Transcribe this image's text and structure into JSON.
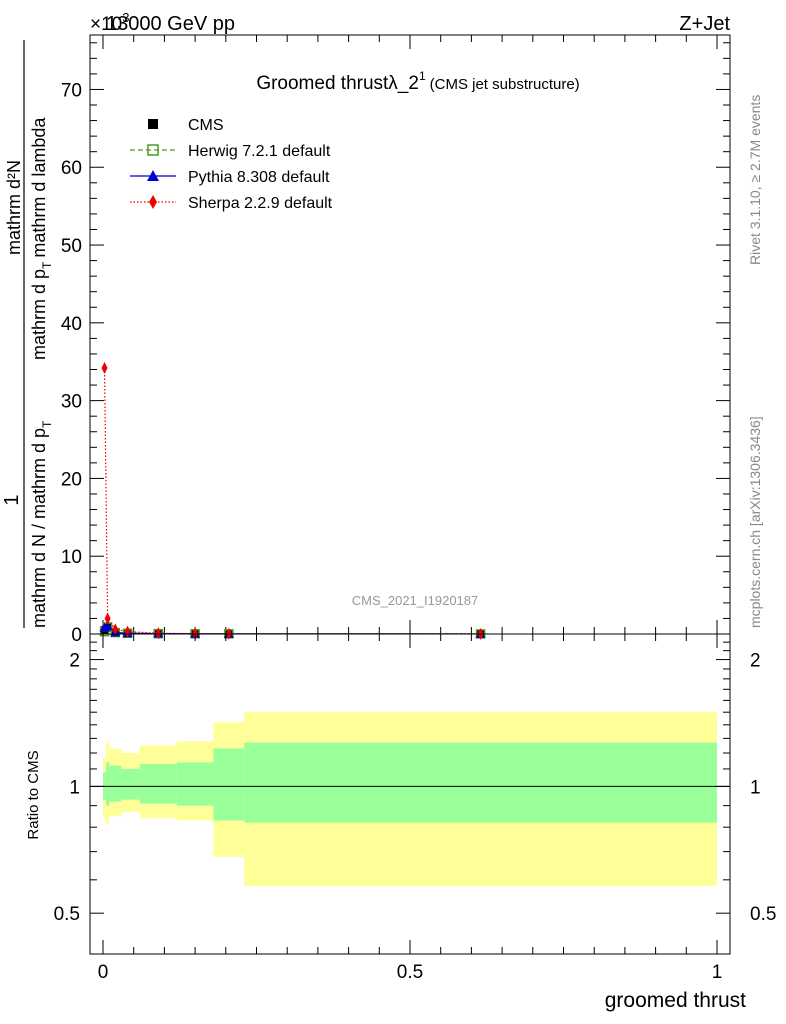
{
  "header": {
    "energy_label": "13000 GeV pp",
    "process_label": "Z+Jet",
    "exponent_label": "×10",
    "exponent_sup": "3"
  },
  "sidebar": {
    "rivet_label": "Rivet 3.1.10, ≥ 2.7M events",
    "mcplots_label": "mcplots.cern.ch [arXiv:1306.3436]"
  },
  "top_panel": {
    "title_main": "Groomed thrustλ_2",
    "title_sup": "1",
    "title_paren": "(CMS jet substructure)",
    "ylabel_num": "mathrm d²N",
    "ylabel_sub_main": "mathrm d p",
    "ylabel_sub_t": "T",
    "ylabel_sub_rest": "mathrm d lambda",
    "ylabel_den_pre": "mathrm d N / mathrm d p",
    "ylabel_den_t": "T",
    "ylabel_one": "1",
    "watermark": "CMS_2021_I1920187"
  },
  "legend": [
    {
      "name": "CMS",
      "color": "#000000",
      "marker": "square-filled",
      "line": "none"
    },
    {
      "name": "Herwig 7.2.1 default",
      "color": "#4d9a1e",
      "marker": "square-open",
      "line": "dashed"
    },
    {
      "name": "Pythia 8.308 default",
      "color": "#0000cc",
      "marker": "triangle",
      "line": "solid"
    },
    {
      "name": "Sherpa 2.2.9 default",
      "color": "#ee0000",
      "marker": "diamond",
      "line": "dotted"
    }
  ],
  "bottom_panel": {
    "ylabel": "Ratio to CMS",
    "xlabel": "groomed thrust"
  },
  "chart_data": [
    {
      "type": "line",
      "panel": "main",
      "xlim": [
        0,
        1
      ],
      "ylim": [
        0,
        77000
      ],
      "y_ticks": [
        0,
        10000,
        20000,
        30000,
        40000,
        50000,
        60000,
        70000
      ],
      "y_tick_labels": [
        "0",
        "10",
        "20",
        "30",
        "40",
        "50",
        "60",
        "70"
      ],
      "series": [
        {
          "name": "CMS",
          "x": [
            0.0025,
            0.0075,
            0.02,
            0.04,
            0.09,
            0.15,
            0.205,
            0.615
          ],
          "y": [
            500,
            800,
            150,
            80,
            40,
            25,
            20,
            10
          ]
        },
        {
          "name": "Herwig 7.2.1 default",
          "x": [
            0.0025,
            0.0075,
            0.02,
            0.04,
            0.09,
            0.15,
            0.205,
            0.615
          ],
          "y": [
            300,
            900,
            180,
            90,
            45,
            28,
            22,
            11
          ]
        },
        {
          "name": "Pythia 8.308 default",
          "x": [
            0.0025,
            0.0075,
            0.02,
            0.04,
            0.09,
            0.15,
            0.205,
            0.615
          ],
          "y": [
            800,
            1000,
            200,
            100,
            50,
            30,
            20,
            10
          ]
        },
        {
          "name": "Sherpa 2.2.9 default",
          "x": [
            0.0025,
            0.0075,
            0.02,
            0.04,
            0.09,
            0.15,
            0.205,
            0.615
          ],
          "y": [
            34200,
            2000,
            600,
            300,
            100,
            50,
            25,
            12
          ]
        }
      ]
    },
    {
      "type": "area",
      "panel": "ratio",
      "xlim": [
        0,
        1
      ],
      "ylim": [
        0.4,
        2.3
      ],
      "y_ticks": [
        0.5,
        1,
        2
      ],
      "y_tick_labels": [
        "0.5",
        "1",
        "2"
      ],
      "x_ticks": [
        0,
        0.5,
        1
      ],
      "x_tick_labels": [
        "0",
        "0.5",
        "1"
      ],
      "reference_line": 1,
      "bin_edges": [
        0,
        0.005,
        0.01,
        0.03,
        0.06,
        0.12,
        0.18,
        0.23,
        1.0
      ],
      "band_outer": {
        "color": "#ffff99",
        "low": [
          0.84,
          0.81,
          0.85,
          0.87,
          0.84,
          0.83,
          0.68,
          0.58
        ],
        "high": [
          1.17,
          1.27,
          1.23,
          1.2,
          1.25,
          1.28,
          1.42,
          1.5
        ]
      },
      "band_inner": {
        "color": "#99ff99",
        "low": [
          0.93,
          0.9,
          0.92,
          0.93,
          0.91,
          0.9,
          0.83,
          0.82
        ],
        "high": [
          1.08,
          1.14,
          1.12,
          1.1,
          1.13,
          1.14,
          1.23,
          1.27
        ]
      }
    }
  ]
}
